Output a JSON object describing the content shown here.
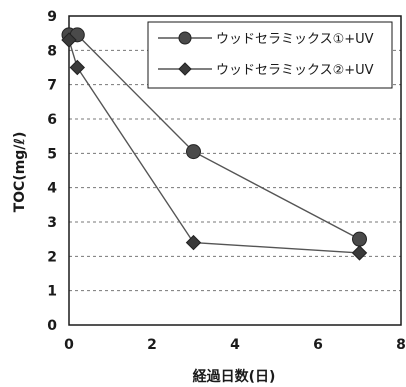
{
  "chart_data": {
    "type": "line",
    "title": "",
    "xlabel": "経過日数(日)",
    "ylabel": "TOC(mg/ℓ)",
    "xlim": [
      0,
      8
    ],
    "ylim": [
      0,
      9
    ],
    "xticks": [
      0,
      2,
      4,
      6,
      8
    ],
    "yticks": [
      0,
      1,
      2,
      3,
      4,
      5,
      6,
      7,
      8,
      9
    ],
    "grid": "horizontal-dashed",
    "legend_position": "top-right",
    "series": [
      {
        "name": "ウッドセラミックス①+UV",
        "marker": "circle",
        "color": "#555555",
        "points": [
          [
            0,
            8.45
          ],
          [
            0.2,
            8.45
          ],
          [
            3,
            5.05
          ],
          [
            7,
            2.5
          ]
        ]
      },
      {
        "name": "ウッドセラミックス②+UV",
        "marker": "diamond",
        "color": "#555555",
        "points": [
          [
            0,
            8.3
          ],
          [
            0.2,
            7.5
          ],
          [
            3,
            2.4
          ],
          [
            7,
            2.1
          ]
        ]
      }
    ]
  }
}
